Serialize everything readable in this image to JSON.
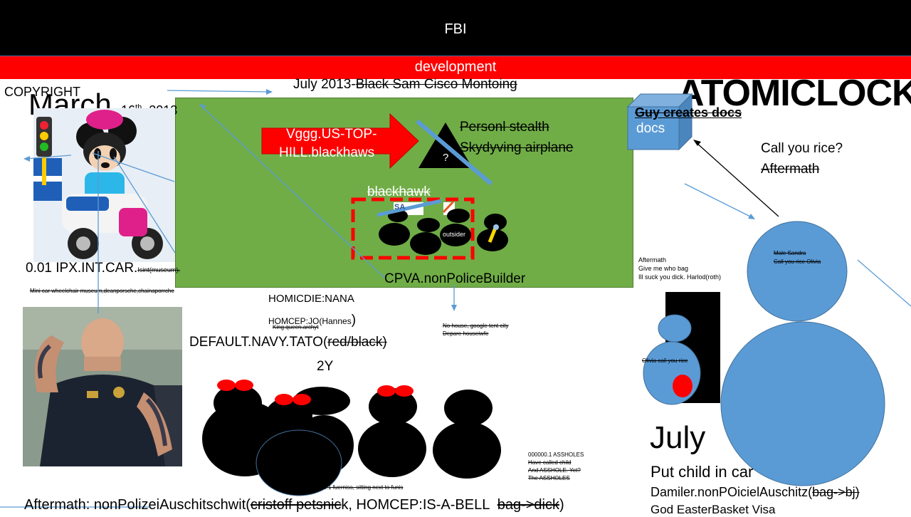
{
  "header": {
    "title": "FBI",
    "subtitle": "development"
  },
  "top": {
    "copyright": "COPYRIGHT",
    "march": "March",
    "date_sup_day": "16",
    "date_sup_th": "th",
    "date_year": ", 2013",
    "july_plain": "July 2013-",
    "july_struck": "Black Sam Cisco Montoing",
    "atomic": "ATOMICLOCK"
  },
  "green_panel": {
    "arrow_text_1": "Vggg.US-TOP-",
    "arrow_text_2": "HILL.blackhaws",
    "triangle_mark": "?",
    "struck_1": "Personl stealth",
    "struck_2": "Skydyving airplane",
    "blackhawk": "blackhawk",
    "outsider": "outsider",
    "sa_label": "SA",
    "cpva": "CPVA.nonPoliceBuilder"
  },
  "left": {
    "ipx_main": "0.01 IPX.INT.CAR.",
    "ipx_small": "Isint(museum).",
    "mini_car": "Mini car wheelchair museum,deanporsche,chainaporrche"
  },
  "middle": {
    "homicide": "HOMICDIE:NANA",
    "homcep": "HOMCEP:JO(Hannes",
    "homcep_paren": ")",
    "king": "King.queen.archyt",
    "navy_plain": "DEFAULT.NAVY.TATO(",
    "navy_struck": "red/black)",
    "two_y": "2Y",
    "no_house": "No house, google tent city",
    "depare": "Depare houseiwfe",
    "damiler_basement": "Damiler basement, 0.1 fuerniss, sitting next to funis",
    "assholes_lines": [
      "000000.1 ASSHOLES",
      "Have called child",
      "And ASSHOLE. Yet?",
      "The ASSHOLES"
    ]
  },
  "right": {
    "guy_creates": "Guy creates docs",
    "docs": "docs",
    "call_you_rice": "Call you rice?",
    "aftermath_struck": "Aftermath",
    "aftermath_note_1": "Aftermath",
    "aftermath_note_2": "Give me who bag",
    "aftermath_note_3": "Ill suck you dick. Harlod(roth)",
    "male_sandra_1": "Male Sandra",
    "male_sandra_2": "Call you rice Olivia",
    "olivia": "Olivia call you rice",
    "july_big": "July",
    "put_child": "Put child in car",
    "damiler_plain": "Damiler.nonPOicielAuschitz(",
    "damiler_struck": "bag->bj)",
    "god_easter": "God EasterBasket Visa"
  },
  "bottom": {
    "aftermath_plain": "Aftermath: nonPolizeiAuschitschwit(",
    "cristoff_struck": "cristoff petsnic",
    "homcep_bell": "k, HOMCEP:IS-A-BELL  ",
    "bag_struck": "bag->dick",
    "close_paren": ")"
  },
  "colors": {
    "green": "#70ad47",
    "red": "#ff0000",
    "blue": "#5b9bd5",
    "black": "#000000"
  }
}
